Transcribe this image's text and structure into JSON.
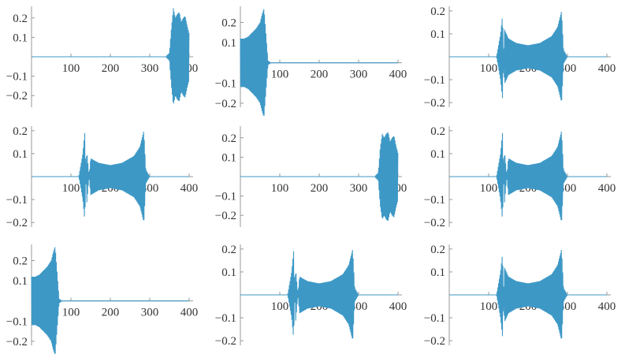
{
  "line_color": "#3d98c6",
  "axis_color": "#999999",
  "chart_data": [
    {
      "type": "line",
      "title": "",
      "xlabel": "",
      "ylabel": "",
      "xlim": [
        0,
        410
      ],
      "ylim": [
        -0.26,
        0.26
      ],
      "x_ticks": [
        100,
        200,
        300,
        400
      ],
      "y_ticks": [
        -0.2,
        -0.1,
        0.1,
        0.2
      ],
      "x_tick_labels": [
        "100",
        "200",
        "300",
        "400"
      ],
      "y_tick_labels": [
        "−0.2",
        "−0.1",
        "0.1",
        "0.2"
      ],
      "series": [
        {
          "x": [
            0,
            340,
            350,
            355,
            360,
            365,
            370,
            375,
            380,
            385,
            390,
            395,
            400
          ],
          "y": [
            0,
            0,
            0.02,
            0.15,
            0.25,
            0.2,
            0.22,
            0.23,
            0.18,
            0.2,
            0.21,
            0.16,
            0.12
          ]
        }
      ]
    },
    {
      "type": "line",
      "title": "",
      "xlabel": "",
      "ylabel": "",
      "xlim": [
        0,
        410
      ],
      "ylim": [
        -0.22,
        0.28
      ],
      "x_ticks": [
        100,
        200,
        300,
        400
      ],
      "y_ticks": [
        -0.2,
        -0.1,
        0.1,
        0.2
      ],
      "x_tick_labels": [
        "100",
        "200",
        "300",
        "400"
      ],
      "y_tick_labels": [
        "−0.2",
        "−0.1",
        "0.1",
        "0.2"
      ],
      "series": [
        {
          "x": [
            0,
            10,
            20,
            30,
            40,
            50,
            55,
            60,
            65,
            70,
            80,
            400
          ],
          "y": [
            0.12,
            0.12,
            0.13,
            0.15,
            0.17,
            0.2,
            0.24,
            0.27,
            0.14,
            0.01,
            0,
            0
          ]
        }
      ]
    },
    {
      "type": "line",
      "title": "",
      "xlabel": "",
      "ylabel": "",
      "xlim": [
        0,
        410
      ],
      "ylim": [
        -0.22,
        0.22
      ],
      "x_ticks": [
        100,
        200,
        300,
        400
      ],
      "y_ticks": [
        -0.2,
        -0.1,
        0.1,
        0.2
      ],
      "x_tick_labels": [
        "100",
        "200",
        "300",
        "400"
      ],
      "y_tick_labels": [
        "−0.2",
        "−0.1",
        "0.1",
        "0.2"
      ],
      "series": [
        {
          "x": [
            0,
            120,
            130,
            135,
            140,
            150,
            170,
            200,
            230,
            260,
            275,
            285,
            290,
            300,
            400
          ],
          "y": [
            0,
            0,
            -0.1,
            -0.18,
            0.12,
            0.08,
            0.06,
            0.05,
            0.06,
            0.09,
            0.13,
            0.2,
            0.03,
            0,
            0
          ]
        }
      ]
    },
    {
      "type": "line",
      "title": "",
      "xlabel": "",
      "ylabel": "",
      "xlim": [
        0,
        410
      ],
      "ylim": [
        -0.22,
        0.22
      ],
      "x_ticks": [
        100,
        200,
        300,
        400
      ],
      "y_ticks": [
        -0.2,
        -0.1,
        0.1,
        0.2
      ],
      "x_tick_labels": [
        "100",
        "200",
        "300",
        "400"
      ],
      "y_tick_labels": [
        "−0.2",
        "−0.1",
        "0.1",
        "0.2"
      ],
      "series": [
        {
          "x": [
            0,
            120,
            130,
            135,
            140,
            150,
            170,
            200,
            230,
            260,
            275,
            285,
            290,
            300,
            400
          ],
          "y": [
            0,
            0,
            0.1,
            0.19,
            -0.12,
            0.08,
            0.06,
            0.05,
            0.06,
            0.09,
            0.13,
            0.2,
            0.03,
            0,
            0
          ]
        }
      ]
    },
    {
      "type": "line",
      "title": "",
      "xlabel": "",
      "ylabel": "",
      "xlim": [
        0,
        410
      ],
      "ylim": [
        -0.26,
        0.26
      ],
      "x_ticks": [
        100,
        200,
        300,
        400
      ],
      "y_ticks": [
        -0.2,
        -0.1,
        0.1,
        0.2
      ],
      "x_tick_labels": [
        "100",
        "200",
        "300",
        "400"
      ],
      "y_tick_labels": [
        "−0.2",
        "−0.1",
        "0.1",
        "0.2"
      ],
      "series": [
        {
          "x": [
            0,
            340,
            350,
            355,
            360,
            365,
            370,
            375,
            380,
            385,
            390,
            395,
            400
          ],
          "y": [
            0,
            0,
            0.02,
            0.15,
            0.22,
            0.2,
            0.22,
            0.23,
            0.18,
            0.2,
            0.21,
            0.16,
            0.12
          ]
        }
      ]
    },
    {
      "type": "line",
      "title": "",
      "xlabel": "",
      "ylabel": "",
      "xlim": [
        0,
        410
      ],
      "ylim": [
        -0.22,
        0.22
      ],
      "x_ticks": [
        100,
        200,
        300,
        400
      ],
      "y_ticks": [
        -0.2,
        -0.1,
        0.1,
        0.2
      ],
      "x_tick_labels": [
        "100",
        "200",
        "300",
        "400"
      ],
      "y_tick_labels": [
        "−0.2",
        "−0.1",
        "0.1",
        "0.2"
      ],
      "series": [
        {
          "x": [
            0,
            120,
            130,
            135,
            140,
            150,
            170,
            200,
            230,
            260,
            275,
            285,
            290,
            300,
            400
          ],
          "y": [
            0,
            0,
            0.1,
            0.19,
            -0.12,
            0.08,
            0.06,
            0.05,
            0.06,
            0.09,
            0.13,
            0.2,
            0.03,
            0,
            0
          ]
        }
      ]
    },
    {
      "type": "line",
      "title": "",
      "xlabel": "",
      "ylabel": "",
      "xlim": [
        0,
        410
      ],
      "ylim": [
        -0.22,
        0.28
      ],
      "x_ticks": [
        100,
        200,
        300,
        400
      ],
      "y_ticks": [
        -0.2,
        -0.1,
        0.1,
        0.2
      ],
      "x_tick_labels": [
        "100",
        "200",
        "300",
        "400"
      ],
      "y_tick_labels": [
        "−0.2",
        "−0.1",
        "0.1",
        "0.2"
      ],
      "series": [
        {
          "x": [
            0,
            10,
            20,
            30,
            40,
            50,
            55,
            60,
            65,
            70,
            80,
            400
          ],
          "y": [
            0.12,
            0.12,
            0.13,
            0.15,
            0.17,
            0.2,
            0.24,
            0.27,
            0.14,
            0.01,
            0,
            0
          ]
        }
      ]
    },
    {
      "type": "line",
      "title": "",
      "xlabel": "",
      "ylabel": "",
      "xlim": [
        0,
        410
      ],
      "ylim": [
        -0.22,
        0.22
      ],
      "x_ticks": [
        100,
        200,
        300,
        400
      ],
      "y_ticks": [
        -0.2,
        -0.1,
        0.1,
        0.2
      ],
      "x_tick_labels": [
        "100",
        "200",
        "300",
        "400"
      ],
      "y_tick_labels": [
        "−0.2",
        "−0.1",
        "0.1",
        "0.2"
      ],
      "series": [
        {
          "x": [
            0,
            120,
            130,
            135,
            140,
            150,
            170,
            200,
            230,
            260,
            275,
            285,
            290,
            300,
            400
          ],
          "y": [
            0,
            0,
            0.1,
            0.19,
            -0.12,
            0.08,
            0.06,
            0.05,
            0.06,
            0.09,
            0.13,
            0.2,
            0.03,
            0,
            0
          ]
        }
      ]
    },
    {
      "type": "line",
      "title": "",
      "xlabel": "",
      "ylabel": "",
      "xlim": [
        0,
        410
      ],
      "ylim": [
        -0.22,
        0.22
      ],
      "x_ticks": [
        100,
        200,
        300,
        400
      ],
      "y_ticks": [
        -0.2,
        -0.1,
        0.1,
        0.2
      ],
      "x_tick_labels": [
        "100",
        "200",
        "300",
        "400"
      ],
      "y_tick_labels": [
        "−0.2",
        "−0.1",
        "0.1",
        "0.2"
      ],
      "series": [
        {
          "x": [
            0,
            120,
            130,
            135,
            140,
            150,
            170,
            200,
            230,
            260,
            275,
            285,
            290,
            300,
            400
          ],
          "y": [
            0,
            0,
            -0.1,
            -0.18,
            0.12,
            0.08,
            0.06,
            0.05,
            0.06,
            0.09,
            0.13,
            0.2,
            0.03,
            0,
            0
          ]
        }
      ]
    }
  ]
}
